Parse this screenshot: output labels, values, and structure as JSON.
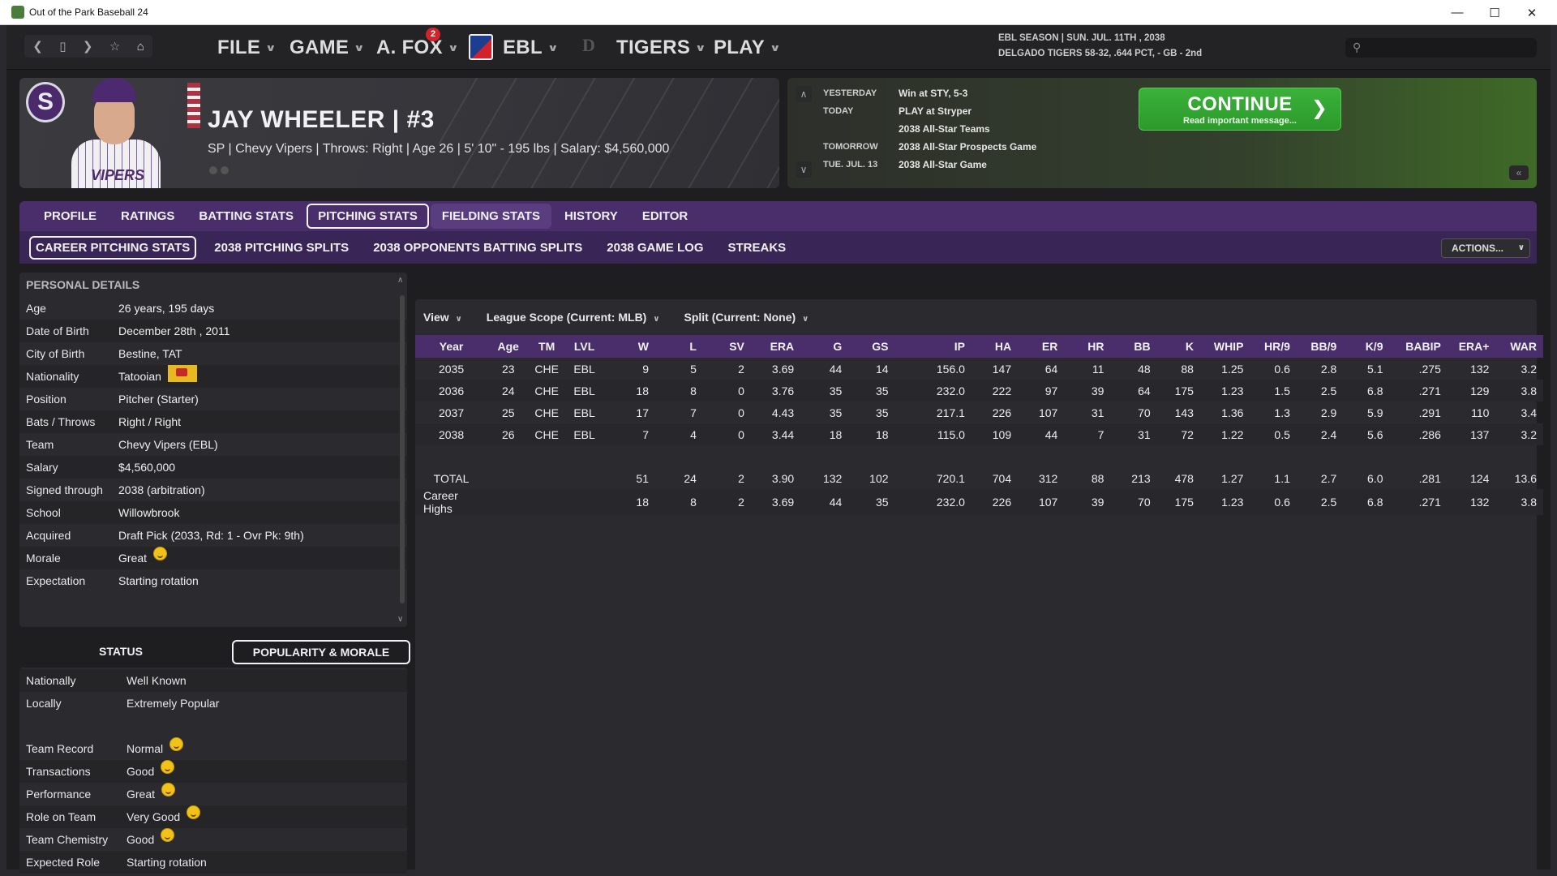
{
  "window": {
    "title": "Out of the Park Baseball 24",
    "controls": [
      "—",
      "☐",
      "✕"
    ]
  },
  "nav": {
    "back_icon": "chevron-left-icon",
    "menus": [
      {
        "label": "FILE"
      },
      {
        "label": "GAME"
      },
      {
        "label": "A. FOX",
        "badge": "2"
      },
      {
        "label": "EBL"
      },
      {
        "label": "TIGERS"
      },
      {
        "label": "PLAY"
      }
    ],
    "season_line1": "EBL SEASON  |  SUN. JUL. 11TH , 2038",
    "season_line2": "DELGADO TIGERS  58-32, .644 PCT, - GB - 2nd",
    "search_placeholder": ""
  },
  "player": {
    "team_logo_letter": "S",
    "jersey_text": "VIPERS",
    "name": "JAY WHEELER  |  #3",
    "subline": "SP  |  Chevy Vipers  |  Throws: Right  |  Age 26  |  5' 10\" - 195 lbs  |  Salary: $4,560,000"
  },
  "schedule": {
    "rows": [
      {
        "label": "YESTERDAY",
        "value": "Win at STY, 5-3"
      },
      {
        "label": "TODAY",
        "value": "PLAY at Stryper"
      },
      {
        "label": "",
        "value": "2038 All-Star Teams"
      },
      {
        "label": "TOMORROW",
        "value": "2038 All-Star Prospects Game"
      },
      {
        "label": "TUE. JUL. 13",
        "value": "2038 All-Star Game"
      }
    ],
    "continue_label": "CONTINUE",
    "continue_sub": "Read important message..."
  },
  "tabs": [
    {
      "label": "PROFILE"
    },
    {
      "label": "RATINGS"
    },
    {
      "label": "BATTING STATS"
    },
    {
      "label": "PITCHING STATS",
      "active": true
    },
    {
      "label": "FIELDING STATS"
    },
    {
      "label": "HISTORY"
    },
    {
      "label": "EDITOR"
    }
  ],
  "subtabs": [
    {
      "label": "CAREER PITCHING STATS",
      "active": true
    },
    {
      "label": "2038 PITCHING SPLITS"
    },
    {
      "label": "2038 OPPONENTS BATTING SPLITS"
    },
    {
      "label": "2038 GAME LOG"
    },
    {
      "label": "STREAKS"
    }
  ],
  "actions_label": "ACTIONS...",
  "details": {
    "title": "PERSONAL DETAILS",
    "rows": [
      {
        "k": "Age",
        "v": "26 years, 195 days"
      },
      {
        "k": "Date of Birth",
        "v": "December 28th , 2011"
      },
      {
        "k": "City of Birth",
        "v": "Bestine, TAT"
      },
      {
        "k": "Nationality",
        "v": "Tatooian"
      },
      {
        "k": "Position",
        "v": "Pitcher (Starter)"
      },
      {
        "k": "Bats / Throws",
        "v": "Right / Right"
      },
      {
        "k": "Team",
        "v": "Chevy Vipers (EBL)"
      },
      {
        "k": "Salary",
        "v": "$4,560,000"
      },
      {
        "k": "Signed through",
        "v": "2038 (arbitration)"
      },
      {
        "k": "School",
        "v": "Willowbrook"
      },
      {
        "k": "Acquired",
        "v": "Draft Pick (2033, Rd: 1 - Ovr Pk: 9th)"
      },
      {
        "k": "Morale",
        "v": "Great"
      },
      {
        "k": "Expectation",
        "v": "Starting rotation"
      }
    ]
  },
  "status": {
    "tab_status": "STATUS",
    "tab_popularity": "POPULARITY & MORALE",
    "rows": [
      {
        "k": "Nationally",
        "v": "Well Known"
      },
      {
        "k": "Locally",
        "v": "Extremely Popular"
      },
      {
        "k": "Team Record",
        "v": "Normal"
      },
      {
        "k": "Transactions",
        "v": "Good"
      },
      {
        "k": "Performance",
        "v": "Great"
      },
      {
        "k": "Role on Team",
        "v": "Very Good"
      },
      {
        "k": "Team Chemistry",
        "v": "Good"
      },
      {
        "k": "Expected Role",
        "v": "Starting rotation"
      }
    ]
  },
  "filters": {
    "view": "View",
    "scope": "League Scope (Current: MLB)",
    "split": "Split (Current: None)"
  },
  "stats": {
    "columns": [
      "Year",
      "Age",
      "TM",
      "LVL",
      "W",
      "L",
      "SV",
      "ERA",
      "G",
      "GS",
      "IP",
      "HA",
      "ER",
      "HR",
      "BB",
      "K",
      "WHIP",
      "HR/9",
      "BB/9",
      "K/9",
      "BABIP",
      "ERA+",
      "WAR"
    ],
    "rows": [
      [
        "2035",
        "23",
        "CHE",
        "EBL",
        "9",
        "5",
        "2",
        "3.69",
        "44",
        "14",
        "156.0",
        "147",
        "64",
        "11",
        "48",
        "88",
        "1.25",
        "0.6",
        "2.8",
        "5.1",
        ".275",
        "132",
        "3.2"
      ],
      [
        "2036",
        "24",
        "CHE",
        "EBL",
        "18",
        "8",
        "0",
        "3.76",
        "35",
        "35",
        "232.0",
        "222",
        "97",
        "39",
        "64",
        "175",
        "1.23",
        "1.5",
        "2.5",
        "6.8",
        ".271",
        "129",
        "3.8"
      ],
      [
        "2037",
        "25",
        "CHE",
        "EBL",
        "17",
        "7",
        "0",
        "4.43",
        "35",
        "35",
        "217.1",
        "226",
        "107",
        "31",
        "70",
        "143",
        "1.36",
        "1.3",
        "2.9",
        "5.9",
        ".291",
        "110",
        "3.4"
      ],
      [
        "2038",
        "26",
        "CHE",
        "EBL",
        "7",
        "4",
        "0",
        "3.44",
        "18",
        "18",
        "115.0",
        "109",
        "44",
        "7",
        "31",
        "72",
        "1.22",
        "0.5",
        "2.4",
        "5.6",
        ".286",
        "137",
        "3.2"
      ]
    ],
    "total": [
      "TOTAL",
      "",
      "",
      "",
      "51",
      "24",
      "2",
      "3.90",
      "132",
      "102",
      "720.1",
      "704",
      "312",
      "88",
      "213",
      "478",
      "1.27",
      "1.1",
      "2.7",
      "6.0",
      ".281",
      "124",
      "13.6"
    ],
    "highs": [
      "Career Highs",
      "",
      "",
      "",
      "18",
      "8",
      "2",
      "3.69",
      "44",
      "35",
      "232.0",
      "226",
      "107",
      "39",
      "70",
      "175",
      "1.23",
      "0.6",
      "2.5",
      "6.8",
      ".271",
      "132",
      "3.8"
    ]
  }
}
